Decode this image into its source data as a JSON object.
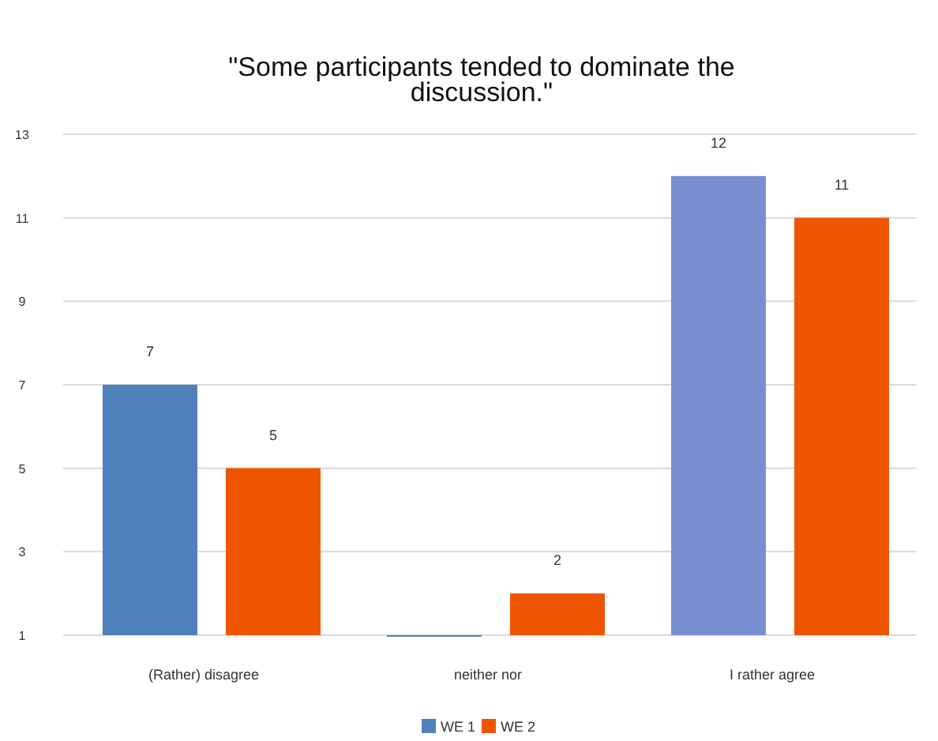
{
  "chart_data": {
    "type": "bar",
    "title": "\"Some participants tended to dominate the discussion.\"",
    "categories": [
      "(Rather) disagree",
      "neither nor",
      "I rather agree"
    ],
    "series": [
      {
        "name": "WE 1",
        "color": "#4f81bd",
        "colors": [
          "#4f81bd",
          "#4f81bd",
          "#7a8fd2"
        ],
        "values": [
          7,
          1,
          12
        ],
        "value_labels": [
          "7",
          null,
          "12"
        ]
      },
      {
        "name": "WE 2",
        "color": "#ef5500",
        "values": [
          5,
          2,
          11
        ],
        "value_labels": [
          "5",
          "2",
          "11"
        ]
      }
    ],
    "ylim": [
      1,
      13
    ],
    "yticks": [
      1,
      3,
      5,
      7,
      9,
      11,
      13
    ],
    "grid": "y",
    "legend": "bottom"
  }
}
